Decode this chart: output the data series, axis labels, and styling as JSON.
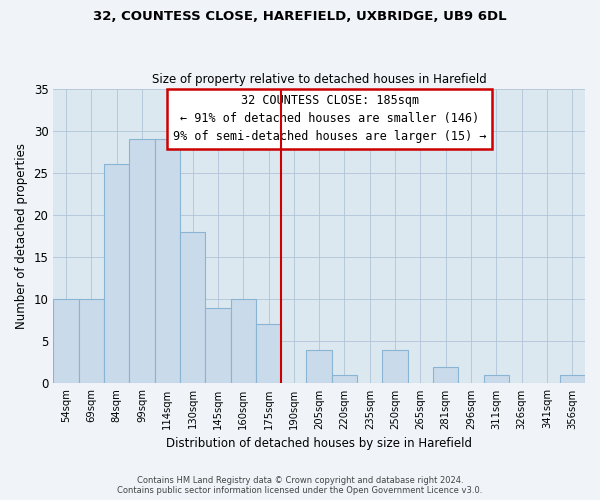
{
  "title_line1": "32, COUNTESS CLOSE, HAREFIELD, UXBRIDGE, UB9 6DL",
  "title_line2": "Size of property relative to detached houses in Harefield",
  "xlabel": "Distribution of detached houses by size in Harefield",
  "ylabel": "Number of detached properties",
  "bar_labels": [
    "54sqm",
    "69sqm",
    "84sqm",
    "99sqm",
    "114sqm",
    "130sqm",
    "145sqm",
    "160sqm",
    "175sqm",
    "190sqm",
    "205sqm",
    "220sqm",
    "235sqm",
    "250sqm",
    "265sqm",
    "281sqm",
    "296sqm",
    "311sqm",
    "326sqm",
    "341sqm",
    "356sqm"
  ],
  "bar_values": [
    10,
    10,
    26,
    29,
    29,
    18,
    9,
    10,
    7,
    0,
    4,
    1,
    0,
    4,
    0,
    2,
    0,
    1,
    0,
    0,
    1
  ],
  "bar_color": "#c9daea",
  "bar_edge_color": "#8ab4d4",
  "reference_line_color": "#cc0000",
  "annotation_text_line1": "32 COUNTESS CLOSE: 185sqm",
  "annotation_text_line2": "← 91% of detached houses are smaller (146)",
  "annotation_text_line3": "9% of semi-detached houses are larger (15) →",
  "ylim": [
    0,
    35
  ],
  "yticks": [
    0,
    5,
    10,
    15,
    20,
    25,
    30,
    35
  ],
  "footer_line1": "Contains HM Land Registry data © Crown copyright and database right 2024.",
  "footer_line2": "Contains public sector information licensed under the Open Government Licence v3.0.",
  "background_color": "#f0f4f8",
  "plot_background_color": "#dce8f0"
}
